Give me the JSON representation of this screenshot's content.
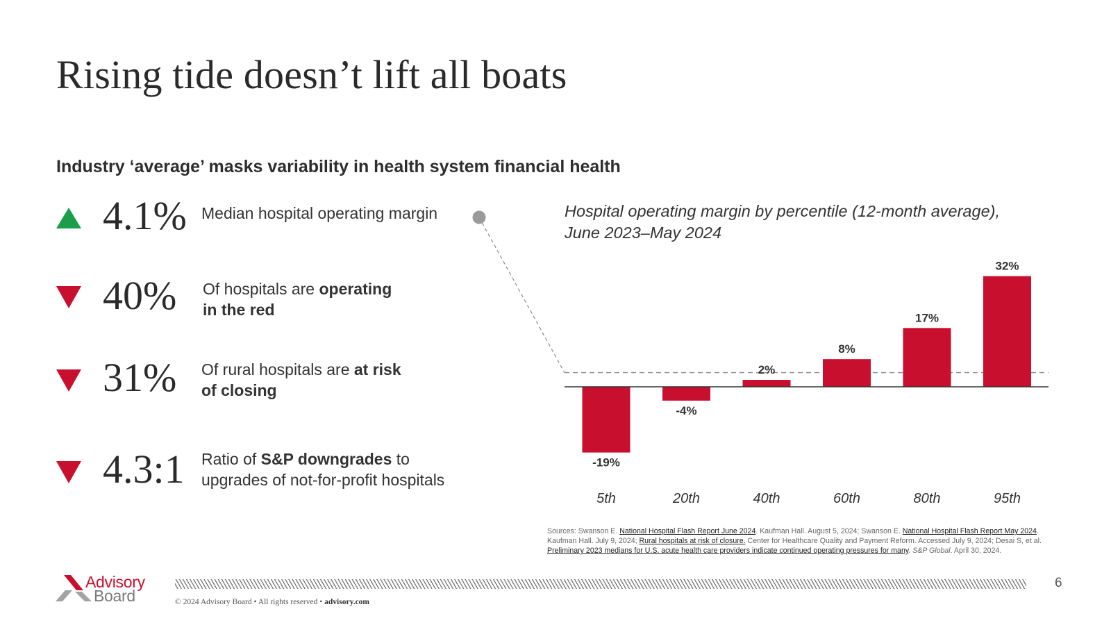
{
  "title": "Rising tide doesn’t lift all boats",
  "subtitle": "Industry ‘average’ masks variability in health system financial health",
  "stats": [
    {
      "direction": "up",
      "value": "4.1%",
      "desc": "Median hospital operating margin"
    },
    {
      "direction": "down",
      "value": "40%",
      "desc_plain": "Of hospitals are ",
      "desc_bold": "operating",
      "desc_line2_bold": "in the red"
    },
    {
      "direction": "down",
      "value": "31%",
      "desc_plain": "Of rural hospitals are ",
      "desc_bold": "at risk",
      "desc_line2_bold": "of closing"
    },
    {
      "direction": "down",
      "value": "4.3:1",
      "desc_plain": "Ratio of ",
      "desc_bold": "S&P downgrades",
      "desc_plain2": " to",
      "desc_line2": "upgrades of not-for-profit hospitals"
    }
  ],
  "chart_data": {
    "type": "bar",
    "title": "Hospital operating margin by percentile (12-month average), June 2023–May 2024",
    "title_line1": "Hospital operating margin by percentile (12-month average),",
    "title_line2": "June 2023–May 2024",
    "categories": [
      "5th",
      "20th",
      "40th",
      "60th",
      "80th",
      "95th"
    ],
    "values": [
      -19,
      -4,
      2,
      8,
      17,
      32
    ],
    "data_labels": [
      "-19%",
      "-4%",
      "2%",
      "8%",
      "17%",
      "32%"
    ],
    "reference_line": {
      "value": 4.1,
      "label": "Median hospital operating margin",
      "style": "dashed"
    },
    "xlabel": "",
    "ylabel": "",
    "ylim": [
      -19,
      32
    ],
    "bar_color": "#c8102e"
  },
  "sources": {
    "s1": "Sources: Swanson E. ",
    "l1": "National Hospital Flash Report June 2024",
    "s2": ". Kaufman Hall. August 5, 2024; Swanson E. ",
    "l2": "National Hospital Flash Report May 2024",
    "s3": ". Kaufman Hall. July 9, 2024; ",
    "l3": "Rural hospitals at risk of closure.",
    "s4": " Center for Healthcare Quality and Payment Reform. Accessed July 9, 2024; Desai S, et al. ",
    "l4": "Preliminary 2023 medians for U.S. acute health care providers indicate continued operating pressures for many",
    "s5": ". ",
    "i1": "S&P Global",
    "s6": ". April 30, 2024."
  },
  "footer": {
    "logo_line1": "Advisory",
    "logo_line2": "Board",
    "copyright": "© 2024 Advisory Board • All rights reserved • ",
    "site": "advisory.com",
    "page_number": "6"
  },
  "colors": {
    "accent_red": "#c8102e",
    "accent_green": "#1a9e4a",
    "dot_gray": "#9a9a9a"
  }
}
